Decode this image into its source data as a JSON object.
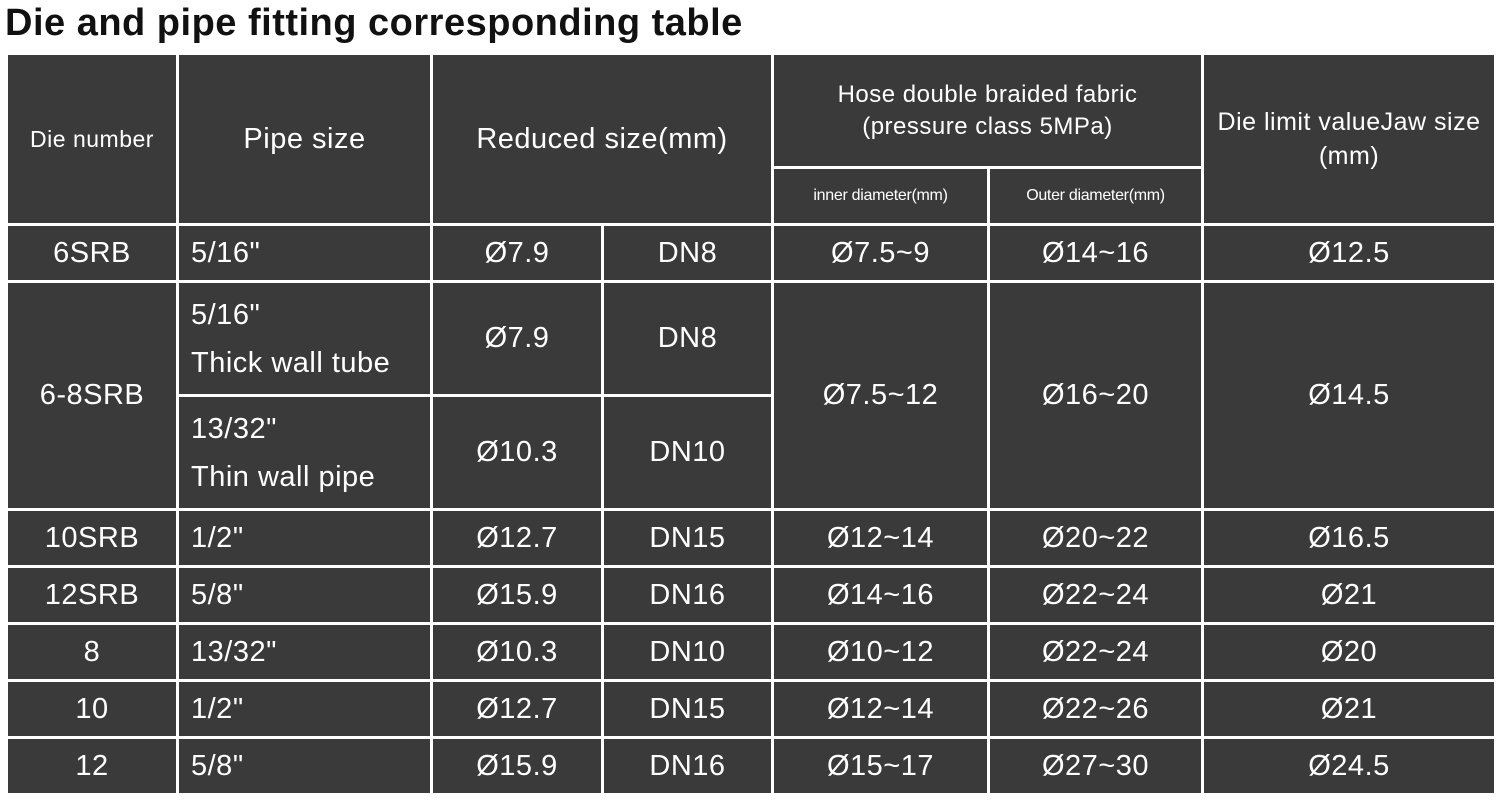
{
  "header": {
    "title": "Die and pipe fitting corresponding table"
  },
  "table": {
    "columns": {
      "die_number": "Die number",
      "pipe_size": "Pipe size",
      "reduced_size": "Reduced size(mm)",
      "hose": [
        "Hose double braided fabric",
        "(pressure class 5MPa)"
      ],
      "inner_diameter": "inner diameter(mm)",
      "outer_diameter": "Outer diameter(mm)",
      "die_limit": [
        "Die limit valueJaw size",
        "(mm)"
      ]
    },
    "rows": [
      {
        "die": "6SRB",
        "pipes": [
          {
            "size": [
              "5/16\""
            ],
            "reduced": "Ø7.9",
            "dn": "DN8"
          }
        ],
        "inner": "Ø7.5~9",
        "outer": "Ø14~16",
        "limit": "Ø12.5"
      },
      {
        "die": "6-8SRB",
        "pipes": [
          {
            "size": [
              "5/16\"",
              "Thick wall tube"
            ],
            "reduced": "Ø7.9",
            "dn": "DN8"
          },
          {
            "size": [
              "13/32\"",
              "Thin wall pipe"
            ],
            "reduced": "Ø10.3",
            "dn": "DN10"
          }
        ],
        "inner": "Ø7.5~12",
        "outer": "Ø16~20",
        "limit": "Ø14.5"
      },
      {
        "die": "10SRB",
        "pipes": [
          {
            "size": [
              "1/2\""
            ],
            "reduced": "Ø12.7",
            "dn": "DN15"
          }
        ],
        "inner": "Ø12~14",
        "outer": "Ø20~22",
        "limit": "Ø16.5"
      },
      {
        "die": "12SRB",
        "pipes": [
          {
            "size": [
              "5/8\""
            ],
            "reduced": "Ø15.9",
            "dn": "DN16"
          }
        ],
        "inner": "Ø14~16",
        "outer": "Ø22~24",
        "limit": "Ø21"
      },
      {
        "die": "8",
        "pipes": [
          {
            "size": [
              "13/32\""
            ],
            "reduced": "Ø10.3",
            "dn": "DN10"
          }
        ],
        "inner": "Ø10~12",
        "outer": "Ø22~24",
        "limit": "Ø20"
      },
      {
        "die": "10",
        "pipes": [
          {
            "size": [
              "1/2\""
            ],
            "reduced": "Ø12.7",
            "dn": "DN15"
          }
        ],
        "inner": "Ø12~14",
        "outer": "Ø22~26",
        "limit": "Ø21"
      },
      {
        "die": "12",
        "pipes": [
          {
            "size": [
              "5/8\""
            ],
            "reduced": "Ø15.9",
            "dn": "DN16"
          }
        ],
        "inner": "Ø15~17",
        "outer": "Ø27~30",
        "limit": "Ø24.5"
      }
    ]
  }
}
